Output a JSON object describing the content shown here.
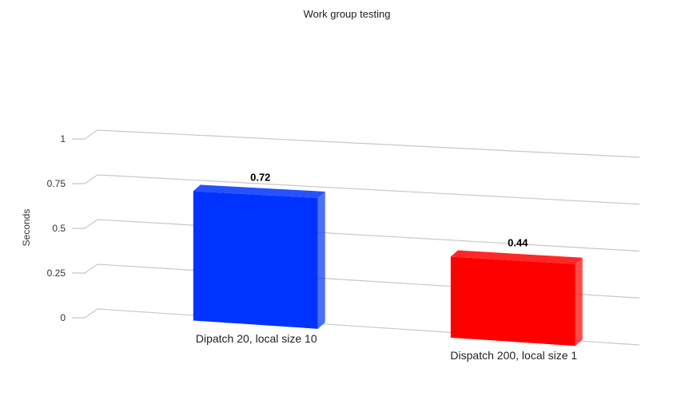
{
  "chart_data": {
    "type": "bar",
    "title": "Work group testing",
    "xlabel": "",
    "ylabel": "Seconds",
    "ylim": [
      0,
      1
    ],
    "yticks": [
      {
        "value": 0,
        "label": "0"
      },
      {
        "value": 0.25,
        "label": "0.25"
      },
      {
        "value": 0.5,
        "label": "0.5"
      },
      {
        "value": 0.75,
        "label": "0.75"
      },
      {
        "value": 1,
        "label": "1"
      }
    ],
    "categories": [
      "Dipatch 20, local size 10",
      "Dispatch 200, local size 1"
    ],
    "values": [
      0.72,
      0.44
    ],
    "data_labels": [
      "0.72",
      "0.44"
    ],
    "colors": [
      "#0033ff",
      "#ff0000"
    ],
    "grid": true,
    "legend": "none",
    "style": "3d"
  }
}
